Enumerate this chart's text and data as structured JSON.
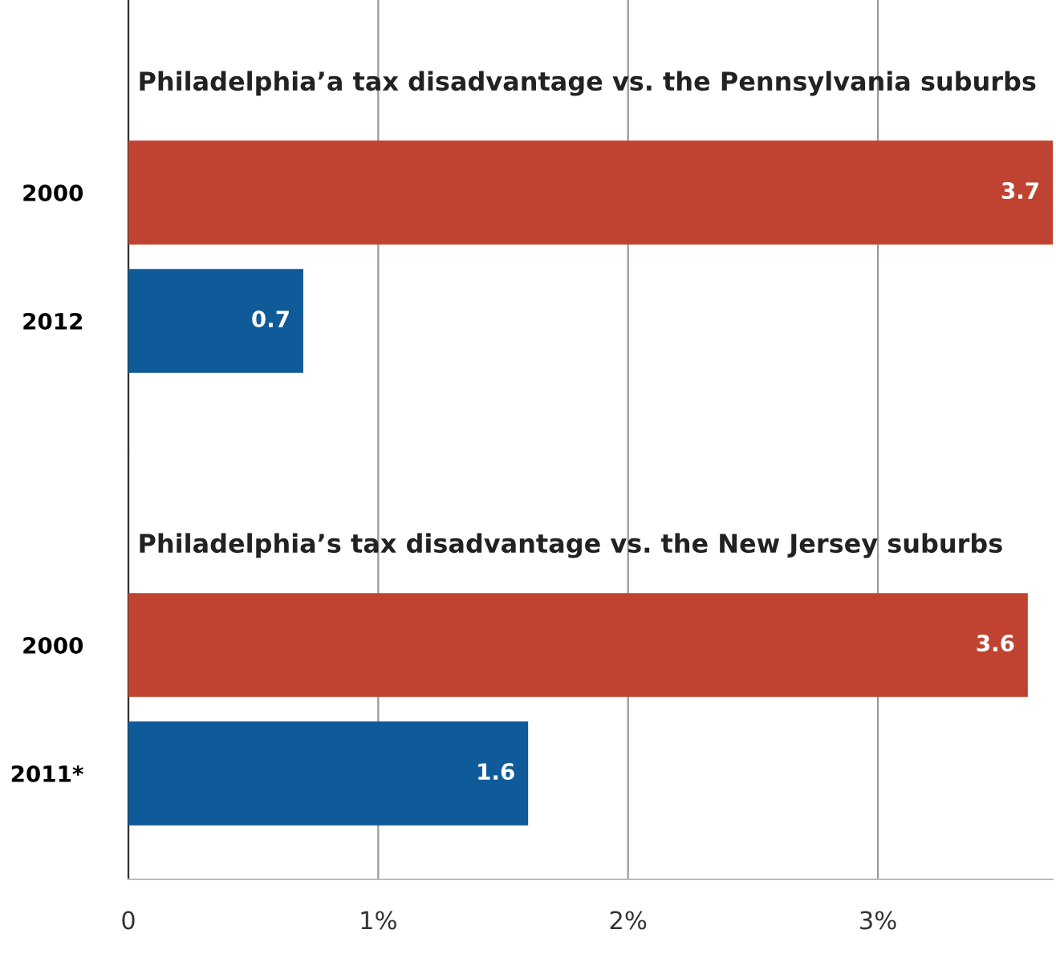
{
  "chart_data": [
    {
      "type": "bar",
      "orientation": "horizontal",
      "title": "Philadelphia’a tax disadvantage vs. the Pennsylvania suburbs",
      "categories": [
        "2000",
        "2012"
      ],
      "values": [
        3.7,
        0.7
      ],
      "colors": [
        "#c04331",
        "#0f5a99"
      ],
      "xlim": [
        0,
        3.7
      ],
      "xticks": [
        {
          "value": 0,
          "label": null
        },
        {
          "value": 1,
          "label": null
        },
        {
          "value": 2,
          "label": null
        },
        {
          "value": 3,
          "label": null
        }
      ],
      "grid": "x",
      "data_labels": true,
      "tick_labels": "y"
    },
    {
      "type": "bar",
      "orientation": "horizontal",
      "title": "Philadelphia’s tax disadvantage vs. the New Jersey suburbs",
      "categories": [
        "2000",
        "2011*"
      ],
      "values": [
        3.6,
        1.6
      ],
      "colors": [
        "#c04331",
        "#0f5a99"
      ],
      "xlim": [
        0,
        3.7
      ],
      "xticks": [
        0,
        {
          "value": 1,
          "label": "1%"
        },
        {
          "value": 2,
          "label": "2%"
        },
        {
          "value": 3,
          "label": "3%"
        }
      ],
      "grid": "x",
      "data_labels": true
    }
  ]
}
